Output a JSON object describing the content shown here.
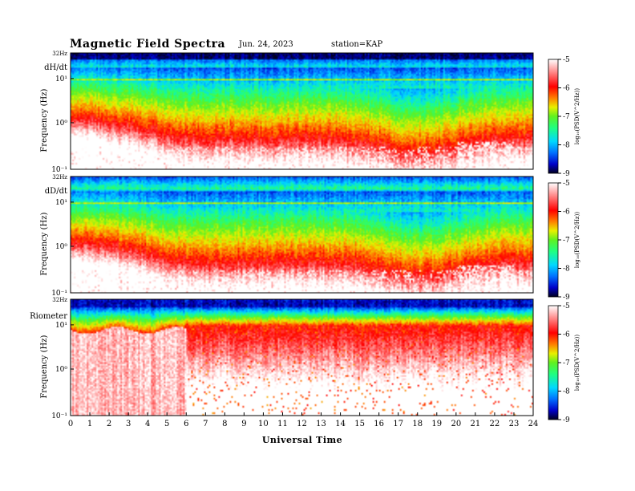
{
  "header": {
    "title": "Magnetic  Field  Spectra",
    "date": "Jun. 24, 2023",
    "station": "station=KAP"
  },
  "chart_data": {
    "type": "heatmap",
    "xlabel": "Universal Time",
    "x_ticks": [
      "0",
      "1",
      "2",
      "3",
      "4",
      "5",
      "6",
      "7",
      "8",
      "9",
      "10",
      "11",
      "12",
      "13",
      "14",
      "15",
      "16",
      "17",
      "18",
      "19",
      "20",
      "21",
      "22",
      "23",
      "24"
    ],
    "xlim": [
      0,
      24
    ],
    "y_log": true,
    "colorbar": {
      "label": "log₁₀(PSD(V^2/Hz))",
      "ticks": [
        "-5",
        "-6",
        "-7",
        "-8",
        "-9"
      ],
      "range": [
        -9,
        -5
      ],
      "colormap": [
        "#000020",
        "#0000c8",
        "#0070ff",
        "#00d8ff",
        "#20ff80",
        "#60f020",
        "#e8f000",
        "#ff8000",
        "#ff0000",
        "#ff8080",
        "#ffffff"
      ]
    },
    "panels": [
      {
        "label": "dH/dt",
        "ylabel": "Frequency  (Hz)",
        "ytick_top": "32Hz",
        "ytick_labels": [
          "10¹",
          "10⁰",
          "10⁻¹"
        ]
      },
      {
        "label": "dD/dt",
        "ylabel": "Frequency  (Hz)",
        "ytick_top": "32Hz",
        "ytick_labels": [
          "10¹",
          "10⁰",
          "10⁻¹"
        ]
      },
      {
        "label": "Riometer",
        "ylabel": "Frequency  (Hz)",
        "ytick_top": "32Hz",
        "ytick_labels": [
          "10¹",
          "10⁰",
          "10⁻¹"
        ]
      }
    ]
  }
}
